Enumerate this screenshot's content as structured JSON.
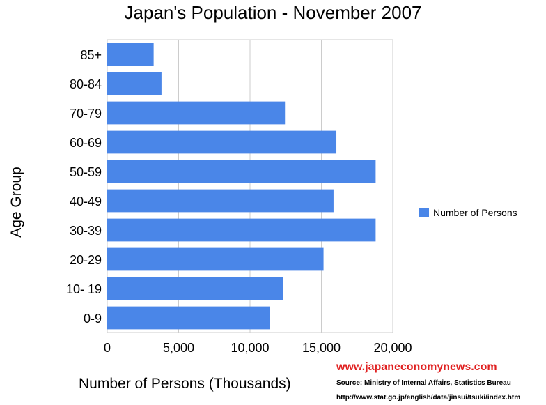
{
  "chart_data": {
    "type": "bar",
    "orientation": "horizontal",
    "title": "Japan's Population - November 2007",
    "xlabel": "Number of Persons (Thousands)",
    "ylabel": "Age Group",
    "categories": [
      "85+",
      "80-84",
      "70-79",
      "60-69",
      "50-59",
      "40-49",
      "30-39",
      "20-29",
      "10- 19",
      "0-9"
    ],
    "series": [
      {
        "name": "Number of Persons",
        "values": [
          3250,
          3800,
          12450,
          16050,
          18800,
          15850,
          18800,
          15150,
          12300,
          11400
        ]
      }
    ],
    "xlim": [
      0,
      20000
    ],
    "xticks": [
      0,
      5000,
      10000,
      15000,
      20000
    ],
    "xtick_labels": [
      "0",
      "5,000",
      "10,000",
      "15,000",
      "20,000"
    ],
    "grid": true,
    "legend_position": "right",
    "bar_color": "#4a86e8"
  },
  "footer": {
    "site": "www.japaneconomynews.com",
    "source": "Source: Ministry of Internal Affairs, Statistics Bureau",
    "url": "http://www.stat.go.jp/english/data/jinsui/tsuki/index.htm"
  }
}
